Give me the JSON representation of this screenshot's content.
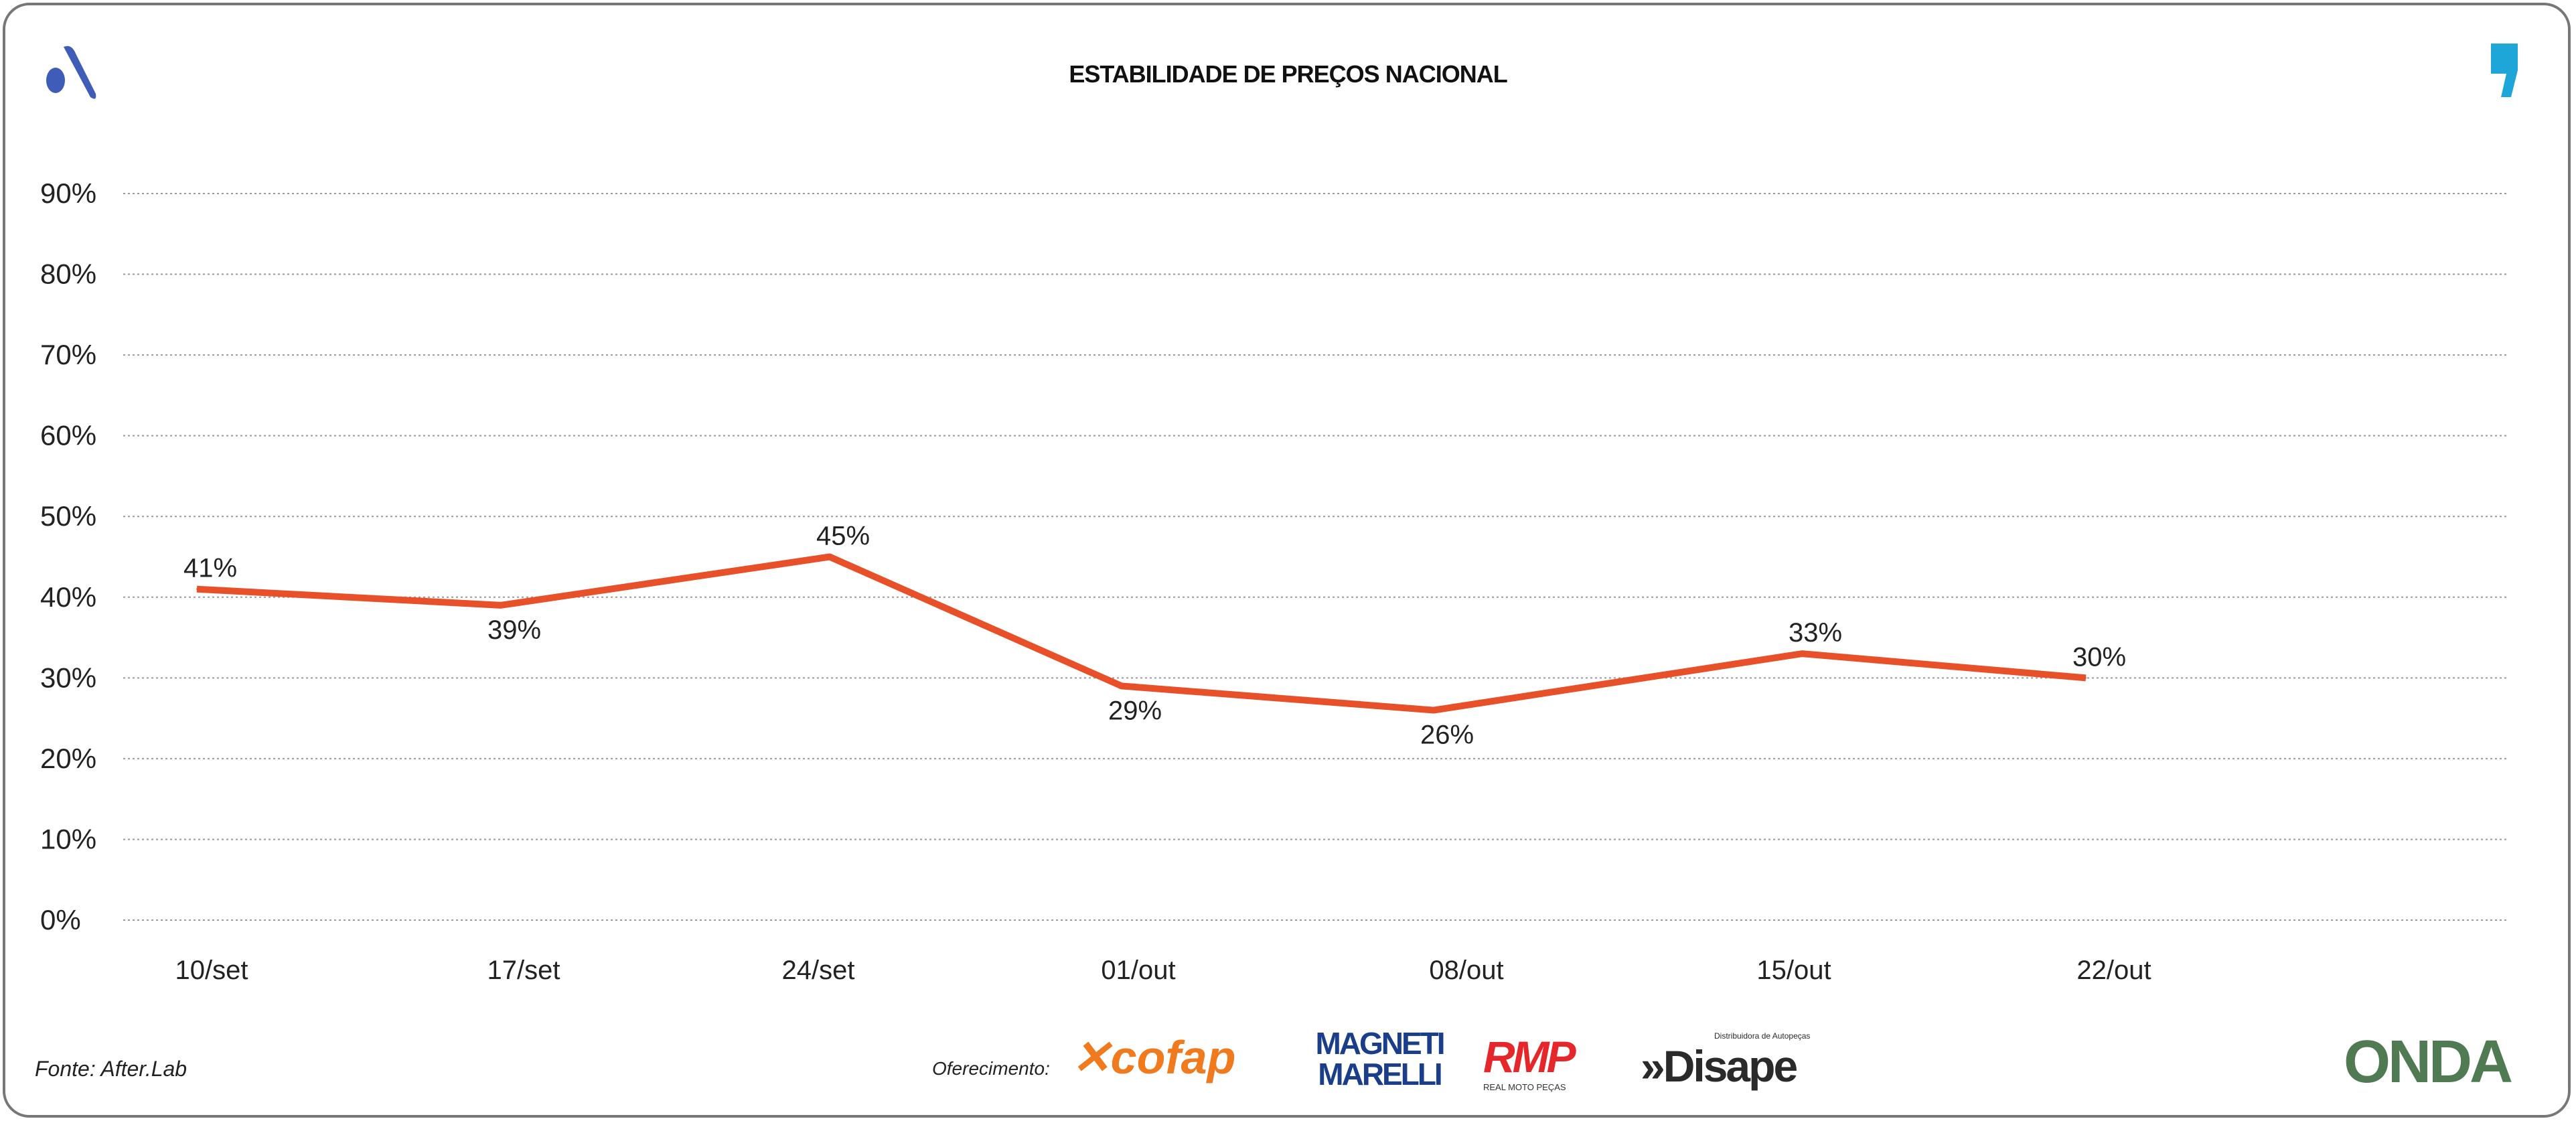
{
  "title": "ESTABILIDADE DE PREÇOS NACIONAL",
  "footer": {
    "source": "Fonte: After.Lab",
    "sponsor_label": "Oferecimento:",
    "sponsors": [
      "cofap",
      "MAGNETI MARELLI",
      "RMP",
      "Disape"
    ],
    "rmp_tagline": "REAL MOTO PEÇAS",
    "disape_tagline": "Distribuidora de Autopeças",
    "onda": "ONDA"
  },
  "colors": {
    "line": "#E8502A",
    "grid": "#9a9a9a",
    "left_logo": "#3F5DB8",
    "right_logo": "#1FA6D9"
  },
  "chart_data": {
    "type": "line",
    "title": "ESTABILIDADE DE PREÇOS NACIONAL",
    "xlabel": "",
    "ylabel": "",
    "categories": [
      "10/set",
      "17/set",
      "24/set",
      "01/out",
      "08/out",
      "15/out",
      "22/out"
    ],
    "values": [
      41,
      39,
      45,
      29,
      26,
      33,
      30
    ],
    "data_labels": [
      "41%",
      "39%",
      "45%",
      "29%",
      "26%",
      "33%",
      "30%"
    ],
    "ylim": [
      0,
      90
    ],
    "yticks": [
      "0%",
      "10%",
      "20%",
      "30%",
      "40%",
      "50%",
      "60%",
      "70%",
      "80%",
      "90%"
    ],
    "grid": true,
    "legend": "none"
  }
}
